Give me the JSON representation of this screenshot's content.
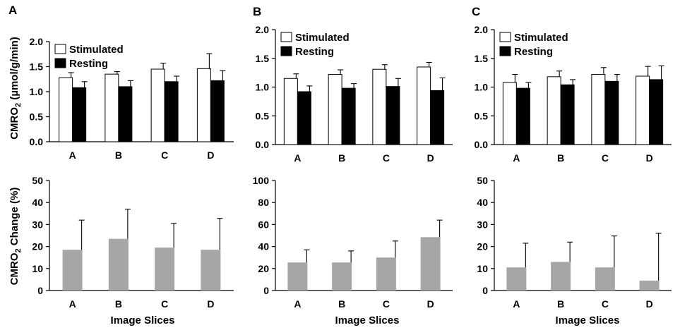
{
  "figure": {
    "panel_labels": [
      "A",
      "B",
      "C"
    ],
    "xlabel": "Image Slices",
    "colors": {
      "stimulated": "#ffffff",
      "resting": "#000000",
      "change": "#a6a6a6",
      "axis": "#000000"
    }
  },
  "chart_data": [
    {
      "type": "bar",
      "panel": "A",
      "row": "top",
      "ylabel": "CMRO2 (µmol/g/min)",
      "ylabel_main": "CMRO",
      "ylabel_sub": "2",
      "ylabel_rest": " (µmol/g/min)",
      "categories": [
        "A",
        "B",
        "C",
        "D"
      ],
      "ylim": [
        0,
        2.0
      ],
      "yticks": [
        "0.0",
        "0.5",
        "1.0",
        "1.5",
        "2.0"
      ],
      "legend": {
        "position": "top-left",
        "entries": [
          "Stimulated",
          "Resting"
        ]
      },
      "series": [
        {
          "name": "Stimulated",
          "values": [
            1.28,
            1.35,
            1.45,
            1.46
          ],
          "errors": [
            0.1,
            0.05,
            0.12,
            0.3
          ]
        },
        {
          "name": "Resting",
          "values": [
            1.08,
            1.1,
            1.2,
            1.22
          ],
          "errors": [
            0.12,
            0.12,
            0.11,
            0.2
          ]
        }
      ]
    },
    {
      "type": "bar",
      "panel": "B",
      "row": "top",
      "ylabel": "",
      "categories": [
        "A",
        "B",
        "C",
        "D"
      ],
      "ylim": [
        0,
        2.0
      ],
      "yticks": [
        "0.0",
        "0.5",
        "1.0",
        "1.5",
        "2.0"
      ],
      "legend": {
        "position": "top-left",
        "entries": [
          "Stimulated",
          "Resting"
        ]
      },
      "series": [
        {
          "name": "Stimulated",
          "values": [
            1.15,
            1.22,
            1.31,
            1.35
          ],
          "errors": [
            0.08,
            0.08,
            0.08,
            0.08
          ]
        },
        {
          "name": "Resting",
          "values": [
            0.92,
            0.98,
            1.01,
            0.94
          ],
          "errors": [
            0.1,
            0.08,
            0.14,
            0.22
          ]
        }
      ]
    },
    {
      "type": "bar",
      "panel": "C",
      "row": "top",
      "ylabel": "",
      "categories": [
        "A",
        "B",
        "C",
        "D"
      ],
      "ylim": [
        0,
        2.0
      ],
      "yticks": [
        "0.0",
        "0.5",
        "1.0",
        "1.5",
        "2.0"
      ],
      "legend": {
        "position": "top-left",
        "entries": [
          "Stimulated",
          "Resting"
        ]
      },
      "series": [
        {
          "name": "Stimulated",
          "values": [
            1.08,
            1.18,
            1.22,
            1.19
          ],
          "errors": [
            0.14,
            0.1,
            0.12,
            0.17
          ]
        },
        {
          "name": "Resting",
          "values": [
            0.98,
            1.04,
            1.1,
            1.13
          ],
          "errors": [
            0.1,
            0.09,
            0.12,
            0.24
          ]
        }
      ]
    },
    {
      "type": "bar",
      "panel": "A",
      "row": "bottom",
      "ylabel": "CMRO2 Change (%)",
      "ylabel_main": "CMRO",
      "ylabel_sub": "2",
      "ylabel_rest": " Change (%)",
      "xlabel": "Image Slices",
      "categories": [
        "A",
        "B",
        "C",
        "D"
      ],
      "ylim": [
        0,
        50
      ],
      "yticks": [
        "0",
        "10",
        "20",
        "30",
        "40",
        "50"
      ],
      "series": [
        {
          "name": "CMRO2 Change",
          "values": [
            18.5,
            23.5,
            19.5,
            18.5
          ],
          "errors": [
            13.5,
            13.5,
            11.0,
            14.3
          ]
        }
      ]
    },
    {
      "type": "bar",
      "panel": "B",
      "row": "bottom",
      "ylabel": "",
      "xlabel": "Image Slices",
      "categories": [
        "A",
        "B",
        "C",
        "D"
      ],
      "ylim": [
        0,
        100
      ],
      "yticks": [
        "0",
        "20",
        "40",
        "60",
        "80",
        "100"
      ],
      "series": [
        {
          "name": "CMRO2 Change",
          "values": [
            25.5,
            25.5,
            30.0,
            48.5
          ],
          "errors": [
            11.5,
            10.5,
            15.0,
            15.5
          ]
        }
      ]
    },
    {
      "type": "bar",
      "panel": "C",
      "row": "bottom",
      "ylabel": "",
      "xlabel": "Image Slices",
      "categories": [
        "A",
        "B",
        "C",
        "D"
      ],
      "ylim": [
        0,
        50
      ],
      "yticks": [
        "0",
        "10",
        "20",
        "30",
        "40",
        "50"
      ],
      "series": [
        {
          "name": "CMRO2 Change",
          "values": [
            10.5,
            13.0,
            10.5,
            4.5
          ],
          "errors": [
            11.0,
            9.0,
            14.3,
            21.5
          ]
        }
      ]
    }
  ]
}
